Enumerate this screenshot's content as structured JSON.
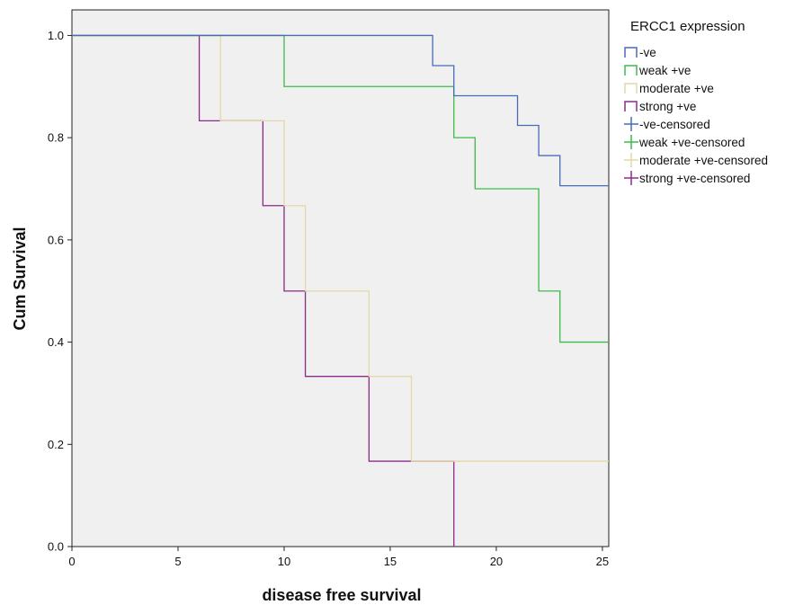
{
  "chart_data": {
    "type": "line",
    "subtype": "kaplan-meier step curves",
    "xlabel": "disease free survival",
    "ylabel": "Cum Survival",
    "xlim": [
      0,
      25.3
    ],
    "ylim": [
      0,
      1.05
    ],
    "x_ticks": [
      0,
      5,
      10,
      15,
      20,
      25
    ],
    "x_tick_labels": [
      "0",
      "5",
      "10",
      "15",
      "20",
      "25"
    ],
    "y_ticks": [
      0.0,
      0.2,
      0.4,
      0.6,
      0.8,
      1.0
    ],
    "y_tick_labels": [
      "0.0",
      "0.2",
      "0.4",
      "0.6",
      "0.8",
      "1.0"
    ],
    "grid": false,
    "plot_background": "#f0f0f0",
    "legend": {
      "title": "ERCC1 expression",
      "placement": "right",
      "entries": [
        {
          "label": "-ve",
          "color": "#4a6ab8",
          "marker": "step"
        },
        {
          "label": "weak +ve",
          "color": "#3dbb4a",
          "marker": "step"
        },
        {
          "label": "moderate +ve",
          "color": "#e3d8a6",
          "marker": "step"
        },
        {
          "label": "strong +ve",
          "color": "#8a2a8c",
          "marker": "step"
        },
        {
          "label": "-ve-censored",
          "color": "#4a6ab8",
          "marker": "cross"
        },
        {
          "label": "weak +ve-censored",
          "color": "#3dbb4a",
          "marker": "cross"
        },
        {
          "label": "moderate +ve-censored",
          "color": "#e3d8a6",
          "marker": "cross"
        },
        {
          "label": "strong +ve-censored",
          "color": "#8a2a8c",
          "marker": "cross"
        }
      ]
    },
    "series": [
      {
        "name": "-ve",
        "color": "#4a6ab8",
        "points": [
          [
            0,
            1.0
          ],
          [
            17,
            0.941
          ],
          [
            18,
            0.882
          ],
          [
            21,
            0.824
          ],
          [
            22,
            0.765
          ],
          [
            23,
            0.706
          ],
          [
            25.3,
            0.706
          ]
        ]
      },
      {
        "name": "weak +ve",
        "color": "#3dbb4a",
        "points": [
          [
            0,
            1.0
          ],
          [
            10,
            0.9
          ],
          [
            18,
            0.8
          ],
          [
            19,
            0.7
          ],
          [
            22,
            0.5
          ],
          [
            23,
            0.4
          ],
          [
            25.3,
            0.4
          ]
        ]
      },
      {
        "name": "moderate +ve",
        "color": "#e3d8a6",
        "points": [
          [
            0,
            1.0
          ],
          [
            7,
            0.833
          ],
          [
            10,
            0.667
          ],
          [
            11,
            0.5
          ],
          [
            14,
            0.333
          ],
          [
            16,
            0.167
          ],
          [
            25.3,
            0.167
          ]
        ]
      },
      {
        "name": "strong +ve",
        "color": "#8a2a8c",
        "points": [
          [
            0,
            1.0
          ],
          [
            6,
            0.833
          ],
          [
            9,
            0.667
          ],
          [
            10,
            0.5
          ],
          [
            11,
            0.333
          ],
          [
            14,
            0.167
          ],
          [
            18,
            0.0
          ]
        ]
      }
    ]
  }
}
